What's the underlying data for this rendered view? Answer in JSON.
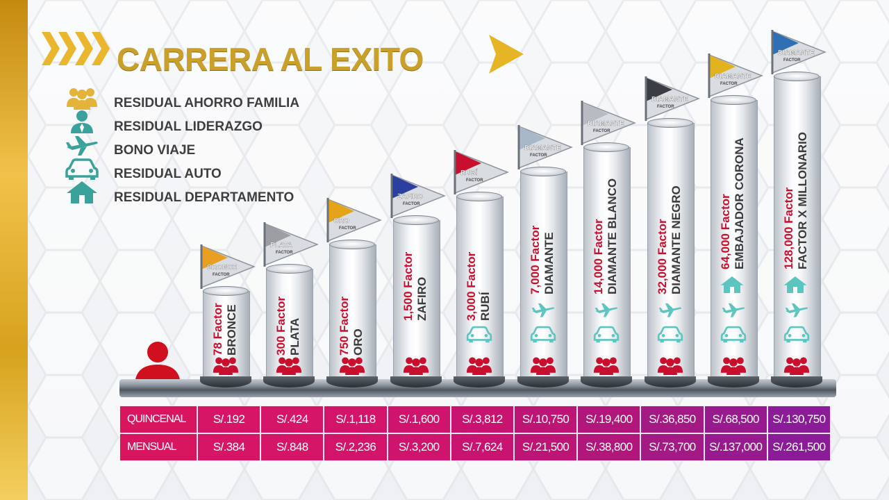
{
  "title": "CARRERA AL EXITO",
  "colors": {
    "gold": "#c9a12a",
    "red": "#c8102e",
    "teal": "#3aa29b",
    "magenta": "#c2127a",
    "purple": "#8e1a9c"
  },
  "legend": [
    {
      "icon": "family-icon",
      "label": "RESIDUAL AHORRO FAMILIA"
    },
    {
      "icon": "leader-icon",
      "label": "RESIDUAL LIDERAZGO"
    },
    {
      "icon": "airplane-icon",
      "label": "BONO VIAJE"
    },
    {
      "icon": "car-icon",
      "label": "RESIDUAL AUTO"
    },
    {
      "icon": "house-icon",
      "label": "RESIDUAL DEPARTAMENTO"
    }
  ],
  "ranks": [
    {
      "factor": "78 Factor",
      "name": "BRONCE",
      "flag": "BRONCE",
      "flag_sub": "FACTOR",
      "flag_color": "#e8a024",
      "icons": [
        "family"
      ],
      "quincenal": "S/.192",
      "mensual": "S/.384"
    },
    {
      "factor": "300 Factor",
      "name": "PLATA",
      "flag": "PLATA",
      "flag_sub": "FACTOR",
      "flag_color": "#9c9ea3",
      "icons": [
        "family"
      ],
      "quincenal": "S/.424",
      "mensual": "S/.848"
    },
    {
      "factor": "750 Factor",
      "name": "ORO",
      "flag": "ORO",
      "flag_sub": "FACTOR",
      "flag_color": "#e5a31a",
      "icons": [
        "family"
      ],
      "quincenal": "S/.1,118",
      "mensual": "S/.2,236"
    },
    {
      "factor": "1,500 Factor",
      "name": "ZAFIRO",
      "flag": "ZAFIRO",
      "flag_sub": "FACTOR",
      "flag_color": "#2b3f9e",
      "icons": [
        "family"
      ],
      "quincenal": "S/.1,600",
      "mensual": "S/.3,200"
    },
    {
      "factor": "3,000 Factor",
      "name": "RUBÍ",
      "flag": "RUBÍ",
      "flag_sub": "FACTOR",
      "flag_color": "#c8102e",
      "icons": [
        "family",
        "car"
      ],
      "quincenal": "S/.3,812",
      "mensual": "S/.7,624"
    },
    {
      "factor": "7,000 Factor",
      "name": "DIAMANTE",
      "flag": "DIAMANTE",
      "flag_sub": "FACTOR",
      "flag_color": "#a9b8c8",
      "icons": [
        "family",
        "car",
        "plane"
      ],
      "quincenal": "S/.10,750",
      "mensual": "S/.21,500"
    },
    {
      "factor": "14,000 Factor",
      "name": "DIAMANTE BLANCO",
      "flag": "DIAMANTE",
      "flag_sub": "FACTOR",
      "flag_color": "#b8bcc2",
      "icons": [
        "family",
        "car",
        "plane"
      ],
      "quincenal": "S/.19,400",
      "mensual": "S/.38,800"
    },
    {
      "factor": "32,000 Factor",
      "name": "DIAMANTE NEGRO",
      "flag": "DIAMANTE",
      "flag_sub": "FACTOR",
      "flag_color": "#3a3d42",
      "icons": [
        "family",
        "car",
        "plane"
      ],
      "quincenal": "S/.36,850",
      "mensual": "S/.73,700"
    },
    {
      "factor": "64,000 Factor",
      "name": "EMBAJADOR CORONA",
      "flag": "DIAMANTE",
      "flag_sub": "FACTOR",
      "flag_color": "#e3b21f",
      "icons": [
        "family",
        "car",
        "plane",
        "house"
      ],
      "quincenal": "S/.68,500",
      "mensual": "S/.137,000"
    },
    {
      "factor": "128,000 Factor",
      "name": "FACTOR X MILLONARIO",
      "flag": "DIAMANTE",
      "flag_sub": "FACTOR",
      "flag_color": "#2f6fb3",
      "icons": [
        "family",
        "car",
        "plane",
        "house"
      ],
      "quincenal": "S/.130,750",
      "mensual": "S/.261,500"
    }
  ],
  "table": {
    "row_labels": [
      "QUINCENAL",
      "MENSUAL"
    ]
  }
}
